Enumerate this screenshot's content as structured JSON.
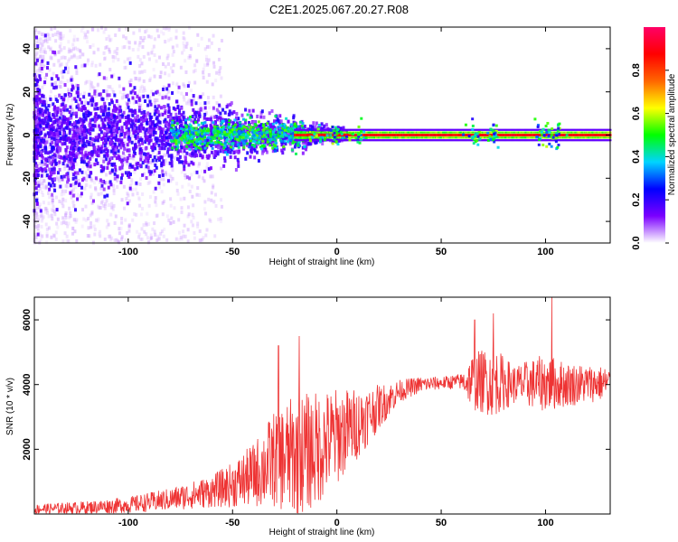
{
  "title": "C2E1.2025.067.20.27.R08",
  "chart_data": [
    {
      "type": "heatmap",
      "xlabel": "Height of straight line (km)",
      "ylabel": "Frequency (Hz)",
      "xlim": [
        -145,
        131
      ],
      "ylim": [
        -50,
        50
      ],
      "xticks": [
        -100,
        -50,
        0,
        50,
        100
      ],
      "yticks": [
        -40,
        -20,
        0,
        20,
        40
      ],
      "colorbar": {
        "label": "Normalized spectral amplitude",
        "range": [
          0,
          1
        ],
        "ticks": [
          "0.0",
          "0.2",
          "0.4",
          "0.6",
          "0.8"
        ],
        "tick_values": [
          0,
          0.2,
          0.4,
          0.6,
          0.8
        ],
        "colormap": [
          "#ffffff",
          "#7b00ff",
          "#0000ff",
          "#00d4ff",
          "#00ff00",
          "#ffff00",
          "#ff6600",
          "#ff0000",
          "#ff0066"
        ]
      },
      "summary": {
        "carrier_frequency_hz": 0,
        "strong_line_from_km": -20,
        "scatter_extends_to_km": -60,
        "spread_hz_at_left_edge": 50
      }
    },
    {
      "type": "line",
      "xlabel": "Height of straight line (km)",
      "ylabel": "SNR (10 * v/v)",
      "xlim": [
        -145,
        131
      ],
      "ylim": [
        0,
        6700
      ],
      "xticks": [
        -100,
        -50,
        0,
        50,
        100
      ],
      "yticks": [
        2000,
        4000,
        6000
      ],
      "color": "#ee3333",
      "envelope": [
        {
          "x": -145,
          "mean": 150,
          "amp": 150
        },
        {
          "x": -120,
          "mean": 200,
          "amp": 200
        },
        {
          "x": -100,
          "mean": 280,
          "amp": 250
        },
        {
          "x": -80,
          "mean": 450,
          "amp": 350
        },
        {
          "x": -60,
          "mean": 700,
          "amp": 500
        },
        {
          "x": -50,
          "mean": 900,
          "amp": 700
        },
        {
          "x": -40,
          "mean": 1200,
          "amp": 1000
        },
        {
          "x": -30,
          "mean": 1700,
          "amp": 1500
        },
        {
          "x": -20,
          "mean": 1800,
          "amp": 1900
        },
        {
          "x": -10,
          "mean": 2000,
          "amp": 1800
        },
        {
          "x": 0,
          "mean": 2400,
          "amp": 1500
        },
        {
          "x": 10,
          "mean": 2800,
          "amp": 1100
        },
        {
          "x": 20,
          "mean": 3300,
          "amp": 700
        },
        {
          "x": 30,
          "mean": 3800,
          "amp": 350
        },
        {
          "x": 40,
          "mean": 4000,
          "amp": 250
        },
        {
          "x": 50,
          "mean": 4050,
          "amp": 200
        },
        {
          "x": 60,
          "mean": 4100,
          "amp": 250
        },
        {
          "x": 65,
          "mean": 4100,
          "amp": 900
        },
        {
          "x": 75,
          "mean": 4100,
          "amp": 1100
        },
        {
          "x": 85,
          "mean": 4000,
          "amp": 600
        },
        {
          "x": 100,
          "mean": 4050,
          "amp": 900
        },
        {
          "x": 110,
          "mean": 4000,
          "amp": 700
        },
        {
          "x": 131,
          "mean": 4050,
          "amp": 500
        }
      ],
      "peaks": [
        {
          "x": 66,
          "y": 6000
        },
        {
          "x": 75,
          "y": 6200
        },
        {
          "x": 103,
          "y": 6700
        },
        {
          "x": -18,
          "y": 5500
        },
        {
          "x": -28,
          "y": 5200
        }
      ]
    }
  ]
}
